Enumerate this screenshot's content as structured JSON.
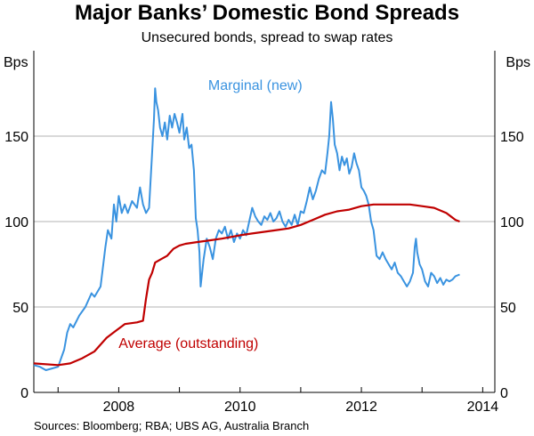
{
  "header": {
    "title": "Major Banks’ Domestic Bond Spreads",
    "subtitle": "Unsecured bonds, spread to swap rates"
  },
  "footer": {
    "source": "Sources: Bloomberg; RBA; UBS AG, Australia Branch"
  },
  "colors": {
    "marginal": "#3a93e0",
    "average": "#c00000",
    "grid": "#b3b3b3",
    "axis": "#000000"
  },
  "chart_data": {
    "type": "line",
    "title": "Major Banks’ Domestic Bond Spreads",
    "subtitle": "Unsecured bonds, spread to swap rates",
    "y_unit_left": "Bps",
    "y_unit_right": "Bps",
    "ylim": [
      0,
      200
    ],
    "yticks": [
      0,
      50,
      100,
      150
    ],
    "y_tick_labels": [
      "0",
      "50",
      "100",
      "150"
    ],
    "xlim": [
      2006.6,
      2014.2
    ],
    "x_tick_labels": [
      {
        "label": "2008",
        "value": 2008.0
      },
      {
        "label": "2010",
        "value": 2010.0
      },
      {
        "label": "2012",
        "value": 2012.0
      },
      {
        "label": "2014",
        "value": 2014.0
      }
    ],
    "x_year_boundaries": [
      2007,
      2008,
      2009,
      2010,
      2011,
      2012,
      2013,
      2014
    ],
    "grid": true,
    "series": [
      {
        "name": "Marginal (new)",
        "color": "#3a93e0",
        "points": [
          [
            2006.6,
            16
          ],
          [
            2006.7,
            15
          ],
          [
            2006.8,
            13
          ],
          [
            2006.9,
            14
          ],
          [
            2007.0,
            15
          ],
          [
            2007.05,
            20
          ],
          [
            2007.1,
            25
          ],
          [
            2007.15,
            35
          ],
          [
            2007.2,
            40
          ],
          [
            2007.25,
            38
          ],
          [
            2007.35,
            45
          ],
          [
            2007.45,
            50
          ],
          [
            2007.55,
            58
          ],
          [
            2007.6,
            56
          ],
          [
            2007.7,
            62
          ],
          [
            2007.78,
            85
          ],
          [
            2007.82,
            95
          ],
          [
            2007.88,
            90
          ],
          [
            2007.92,
            110
          ],
          [
            2007.96,
            100
          ],
          [
            2008.0,
            115
          ],
          [
            2008.05,
            105
          ],
          [
            2008.1,
            110
          ],
          [
            2008.15,
            105
          ],
          [
            2008.22,
            112
          ],
          [
            2008.3,
            108
          ],
          [
            2008.35,
            120
          ],
          [
            2008.4,
            110
          ],
          [
            2008.45,
            105
          ],
          [
            2008.5,
            108
          ],
          [
            2008.55,
            140
          ],
          [
            2008.58,
            160
          ],
          [
            2008.6,
            178
          ],
          [
            2008.62,
            170
          ],
          [
            2008.65,
            165
          ],
          [
            2008.68,
            155
          ],
          [
            2008.72,
            150
          ],
          [
            2008.76,
            158
          ],
          [
            2008.8,
            148
          ],
          [
            2008.84,
            162
          ],
          [
            2008.88,
            155
          ],
          [
            2008.92,
            163
          ],
          [
            2008.96,
            158
          ],
          [
            2009.0,
            152
          ],
          [
            2009.05,
            163
          ],
          [
            2009.08,
            148
          ],
          [
            2009.12,
            155
          ],
          [
            2009.16,
            143
          ],
          [
            2009.2,
            145
          ],
          [
            2009.24,
            130
          ],
          [
            2009.27,
            102
          ],
          [
            2009.3,
            95
          ],
          [
            2009.33,
            82
          ],
          [
            2009.35,
            62
          ],
          [
            2009.4,
            78
          ],
          [
            2009.45,
            90
          ],
          [
            2009.5,
            85
          ],
          [
            2009.55,
            78
          ],
          [
            2009.6,
            90
          ],
          [
            2009.65,
            95
          ],
          [
            2009.7,
            93
          ],
          [
            2009.75,
            97
          ],
          [
            2009.8,
            90
          ],
          [
            2009.85,
            95
          ],
          [
            2009.9,
            88
          ],
          [
            2009.95,
            93
          ],
          [
            2010.0,
            90
          ],
          [
            2010.05,
            95
          ],
          [
            2010.1,
            92
          ],
          [
            2010.15,
            100
          ],
          [
            2010.2,
            108
          ],
          [
            2010.25,
            103
          ],
          [
            2010.3,
            100
          ],
          [
            2010.35,
            98
          ],
          [
            2010.4,
            103
          ],
          [
            2010.45,
            101
          ],
          [
            2010.5,
            105
          ],
          [
            2010.55,
            100
          ],
          [
            2010.6,
            102
          ],
          [
            2010.65,
            106
          ],
          [
            2010.7,
            100
          ],
          [
            2010.75,
            97
          ],
          [
            2010.8,
            101
          ],
          [
            2010.85,
            98
          ],
          [
            2010.9,
            104
          ],
          [
            2010.95,
            98
          ],
          [
            2011.0,
            106
          ],
          [
            2011.05,
            105
          ],
          [
            2011.1,
            112
          ],
          [
            2011.15,
            120
          ],
          [
            2011.2,
            113
          ],
          [
            2011.25,
            118
          ],
          [
            2011.3,
            125
          ],
          [
            2011.35,
            130
          ],
          [
            2011.4,
            128
          ],
          [
            2011.44,
            140
          ],
          [
            2011.47,
            150
          ],
          [
            2011.5,
            170
          ],
          [
            2011.53,
            160
          ],
          [
            2011.56,
            145
          ],
          [
            2011.6,
            140
          ],
          [
            2011.64,
            130
          ],
          [
            2011.68,
            138
          ],
          [
            2011.72,
            133
          ],
          [
            2011.76,
            137
          ],
          [
            2011.8,
            128
          ],
          [
            2011.84,
            132
          ],
          [
            2011.88,
            140
          ],
          [
            2011.92,
            134
          ],
          [
            2011.96,
            130
          ],
          [
            2012.0,
            120
          ],
          [
            2012.04,
            118
          ],
          [
            2012.08,
            115
          ],
          [
            2012.12,
            110
          ],
          [
            2012.16,
            100
          ],
          [
            2012.2,
            95
          ],
          [
            2012.25,
            80
          ],
          [
            2012.3,
            78
          ],
          [
            2012.35,
            82
          ],
          [
            2012.4,
            78
          ],
          [
            2012.45,
            75
          ],
          [
            2012.5,
            72
          ],
          [
            2012.55,
            76
          ],
          [
            2012.6,
            70
          ],
          [
            2012.65,
            68
          ],
          [
            2012.7,
            65
          ],
          [
            2012.75,
            62
          ],
          [
            2012.8,
            65
          ],
          [
            2012.85,
            70
          ],
          [
            2012.88,
            85
          ],
          [
            2012.9,
            90
          ],
          [
            2012.92,
            82
          ],
          [
            2012.96,
            75
          ],
          [
            2013.0,
            72
          ],
          [
            2013.05,
            65
          ],
          [
            2013.1,
            62
          ],
          [
            2013.15,
            70
          ],
          [
            2013.2,
            68
          ],
          [
            2013.25,
            64
          ],
          [
            2013.3,
            67
          ],
          [
            2013.35,
            63
          ],
          [
            2013.4,
            66
          ],
          [
            2013.45,
            65
          ],
          [
            2013.5,
            66
          ],
          [
            2013.55,
            68
          ],
          [
            2013.62,
            69
          ]
        ]
      },
      {
        "name": "Average (outstanding)",
        "color": "#c00000",
        "points": [
          [
            2006.6,
            17
          ],
          [
            2007.0,
            16
          ],
          [
            2007.2,
            17
          ],
          [
            2007.4,
            20
          ],
          [
            2007.6,
            24
          ],
          [
            2007.8,
            32
          ],
          [
            2007.95,
            36
          ],
          [
            2008.1,
            40
          ],
          [
            2008.3,
            41
          ],
          [
            2008.4,
            42
          ],
          [
            2008.45,
            55
          ],
          [
            2008.5,
            66
          ],
          [
            2008.55,
            70
          ],
          [
            2008.6,
            76
          ],
          [
            2008.7,
            78
          ],
          [
            2008.8,
            80
          ],
          [
            2008.9,
            84
          ],
          [
            2009.0,
            86
          ],
          [
            2009.1,
            87
          ],
          [
            2009.3,
            88
          ],
          [
            2009.5,
            89
          ],
          [
            2009.7,
            90
          ],
          [
            2010.0,
            92
          ],
          [
            2010.2,
            93
          ],
          [
            2010.4,
            94
          ],
          [
            2010.6,
            95
          ],
          [
            2010.8,
            96
          ],
          [
            2011.0,
            98
          ],
          [
            2011.2,
            101
          ],
          [
            2011.4,
            104
          ],
          [
            2011.6,
            106
          ],
          [
            2011.8,
            107
          ],
          [
            2012.0,
            109
          ],
          [
            2012.2,
            110
          ],
          [
            2012.4,
            110
          ],
          [
            2012.6,
            110
          ],
          [
            2012.8,
            110
          ],
          [
            2013.0,
            109
          ],
          [
            2013.2,
            108
          ],
          [
            2013.4,
            105
          ],
          [
            2013.55,
            101
          ],
          [
            2013.62,
            100
          ]
        ]
      }
    ],
    "annotations": [
      {
        "text": "Marginal (new)",
        "series": 0,
        "x": 2010.25,
        "y": 177
      },
      {
        "text": "Average (outstanding)",
        "series": 1,
        "x": 2009.15,
        "y": 26
      }
    ]
  }
}
